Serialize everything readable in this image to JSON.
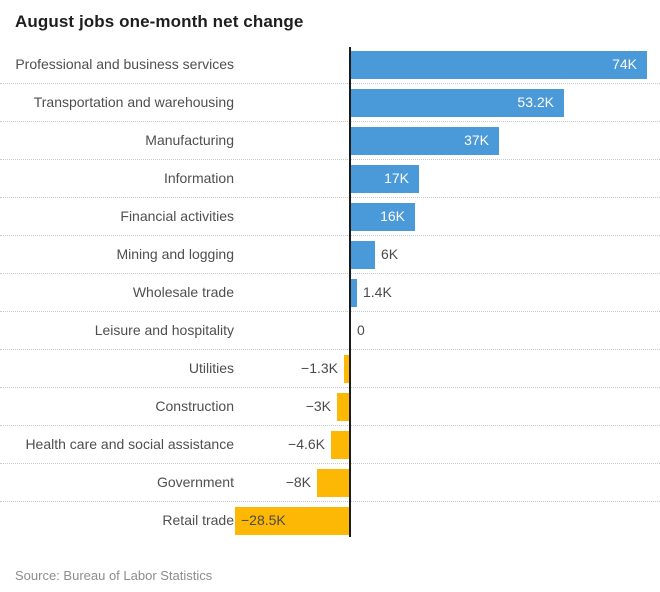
{
  "title": "August jobs one-month net change",
  "source": "Source: Bureau of Labor Statistics",
  "colors": {
    "background": "#ffffff",
    "positive_bar": "#4a99d8",
    "negative_bar": "#fdb705",
    "axis_line": "#1b1b1b",
    "row_separator": "#c9c9c9",
    "category_text": "#4f4f51",
    "value_text_dark": "#4b4b4b",
    "value_text_light": "#ffffff",
    "title_text": "#1e1e1e",
    "source_text": "#8d8d8d"
  },
  "chart_data": {
    "type": "bar",
    "orientation": "horizontal",
    "title": "August jobs one-month net change",
    "source": "Source: Bureau of Labor Statistics",
    "unit": "thousands of jobs (K)",
    "xlim": [
      -28.5,
      74
    ],
    "legend": "none",
    "grid": "dotted row separators, solid vertical zero axis",
    "categories": [
      "Professional and business services",
      "Transportation and warehousing",
      "Manufacturing",
      "Information",
      "Financial activities",
      "Mining and logging",
      "Wholesale trade",
      "Leisure and hospitality",
      "Utilities",
      "Construction",
      "Health care and social assistance",
      "Government",
      "Retail trade"
    ],
    "values": [
      74,
      53.2,
      37,
      17,
      16,
      6,
      1.4,
      0,
      -1.3,
      -3,
      -4.6,
      -8,
      -28.5
    ],
    "value_labels": [
      "74K",
      "53.2K",
      "37K",
      "17K",
      "16K",
      "6K",
      "1.4K",
      "0",
      "−1.3K",
      "−3K",
      "−4.6K",
      "−8K",
      "−28.5K"
    ],
    "label_placements": [
      "inside-end",
      "inside-end",
      "inside-end",
      "inside-end",
      "inside-end",
      "outside-end",
      "outside-end",
      "outside-end",
      "outside-start",
      "outside-start",
      "outside-start",
      "outside-start",
      "inside-start"
    ]
  }
}
